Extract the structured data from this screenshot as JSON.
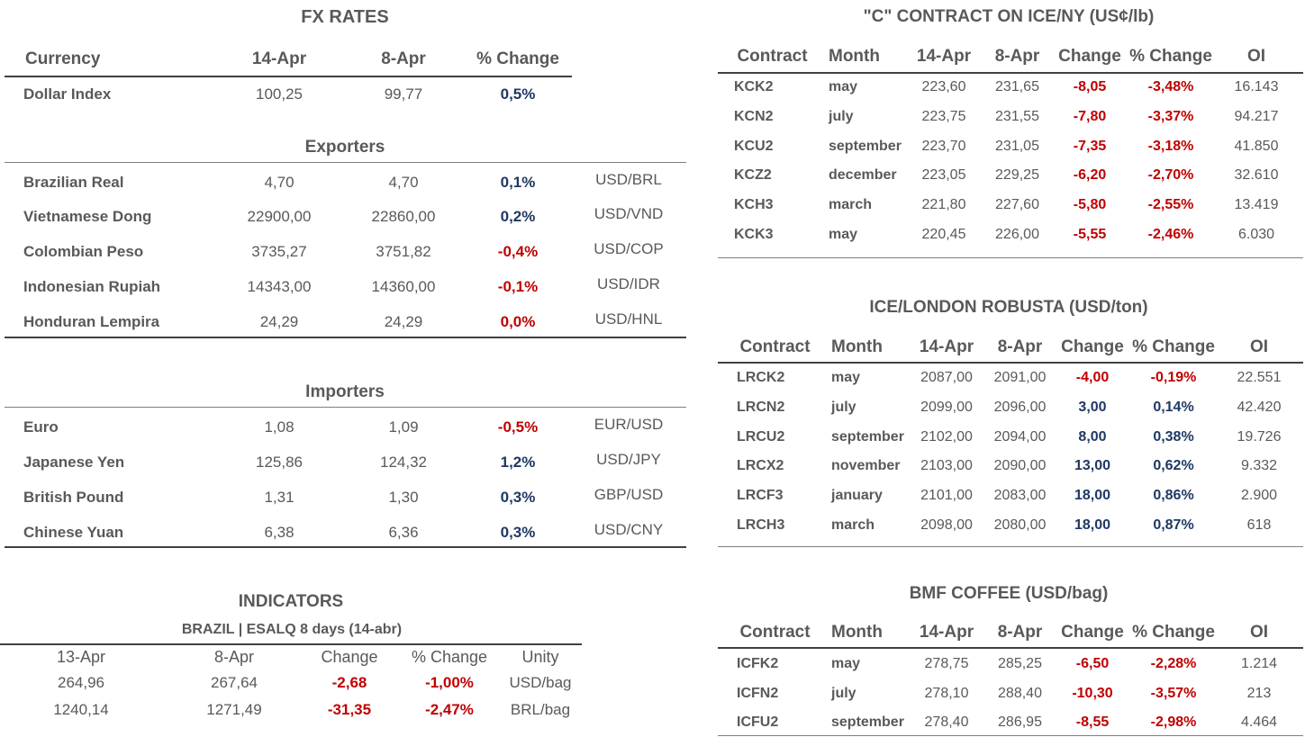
{
  "fx": {
    "title": "FX RATES",
    "headers": [
      "Currency",
      "14-Apr",
      "8-Apr",
      "% Change"
    ],
    "dollar_index": {
      "name": "Dollar Index",
      "v1": "100,25",
      "v2": "99,77",
      "chg": "0,5%"
    },
    "exporters_title": "Exporters",
    "exporters": [
      {
        "name": "Brazilian Real",
        "v1": "4,70",
        "v2": "4,70",
        "chg": "0,1%",
        "pair": "USD/BRL",
        "neg": false
      },
      {
        "name": "Vietnamese Dong",
        "v1": "22900,00",
        "v2": "22860,00",
        "chg": "0,2%",
        "pair": "USD/VND",
        "neg": false
      },
      {
        "name": "Colombian Peso",
        "v1": "3735,27",
        "v2": "3751,82",
        "chg": "-0,4%",
        "pair": "USD/COP",
        "neg": true
      },
      {
        "name": "Indonesian Rupiah",
        "v1": "14343,00",
        "v2": "14360,00",
        "chg": "-0,1%",
        "pair": "USD/IDR",
        "neg": true
      },
      {
        "name": "Honduran Lempira",
        "v1": "24,29",
        "v2": "24,29",
        "chg": "0,0%",
        "pair": "USD/HNL",
        "neg": true
      }
    ],
    "importers_title": "Importers",
    "importers": [
      {
        "name": "Euro",
        "v1": "1,08",
        "v2": "1,09",
        "chg": "-0,5%",
        "pair": "EUR/USD",
        "neg": true
      },
      {
        "name": "Japanese Yen",
        "v1": "125,86",
        "v2": "124,32",
        "chg": "1,2%",
        "pair": "USD/JPY",
        "neg": false
      },
      {
        "name": "British Pound",
        "v1": "1,31",
        "v2": "1,30",
        "chg": "0,3%",
        "pair": "GBP/USD",
        "neg": false
      },
      {
        "name": "Chinese Yuan",
        "v1": "6,38",
        "v2": "6,36",
        "chg": "0,3%",
        "pair": "USD/CNY",
        "neg": false
      }
    ]
  },
  "indicators": {
    "title": "INDICATORS",
    "subtitle": "BRAZIL | ESALQ 8 days (14-abr)",
    "headers": [
      "13-Apr",
      "8-Apr",
      "Change",
      "% Change",
      "Unity"
    ],
    "rows": [
      {
        "v1": "264,96",
        "v2": "267,64",
        "chg": "-2,68",
        "pct": "-1,00%",
        "unit": "USD/bag"
      },
      {
        "v1": "1240,14",
        "v2": "1271,49",
        "chg": "-31,35",
        "pct": "-2,47%",
        "unit": "BRL/bag"
      }
    ]
  },
  "contract_headers": [
    "Contract",
    "Month",
    "14-Apr",
    "8-Apr",
    "Change",
    "% Change",
    "OI"
  ],
  "ice_ny": {
    "title": "\"C\" CONTRACT ON ICE/NY (US¢/lb)",
    "rows": [
      {
        "c": "KCK2",
        "m": "may",
        "v1": "223,60",
        "v2": "231,65",
        "chg": "-8,05",
        "pct": "-3,48%",
        "oi": "16.143",
        "neg": true
      },
      {
        "c": "KCN2",
        "m": "july",
        "v1": "223,75",
        "v2": "231,55",
        "chg": "-7,80",
        "pct": "-3,37%",
        "oi": "94.217",
        "neg": true
      },
      {
        "c": "KCU2",
        "m": "september",
        "v1": "223,70",
        "v2": "231,05",
        "chg": "-7,35",
        "pct": "-3,18%",
        "oi": "41.850",
        "neg": true
      },
      {
        "c": "KCZ2",
        "m": "december",
        "v1": "223,05",
        "v2": "229,25",
        "chg": "-6,20",
        "pct": "-2,70%",
        "oi": "32.610",
        "neg": true
      },
      {
        "c": "KCH3",
        "m": "march",
        "v1": "221,80",
        "v2": "227,60",
        "chg": "-5,80",
        "pct": "-2,55%",
        "oi": "13.419",
        "neg": true
      },
      {
        "c": "KCK3",
        "m": "may",
        "v1": "220,45",
        "v2": "226,00",
        "chg": "-5,55",
        "pct": "-2,46%",
        "oi": "6.030",
        "neg": true
      }
    ]
  },
  "ice_london": {
    "title": "ICE/LONDON ROBUSTA (USD/ton)",
    "rows": [
      {
        "c": "LRCK2",
        "m": "may",
        "v1": "2087,00",
        "v2": "2091,00",
        "chg": "-4,00",
        "pct": "-0,19%",
        "oi": "22.551",
        "neg": true
      },
      {
        "c": "LRCN2",
        "m": "july",
        "v1": "2099,00",
        "v2": "2096,00",
        "chg": "3,00",
        "pct": "0,14%",
        "oi": "42.420",
        "neg": false
      },
      {
        "c": "LRCU2",
        "m": "september",
        "v1": "2102,00",
        "v2": "2094,00",
        "chg": "8,00",
        "pct": "0,38%",
        "oi": "19.726",
        "neg": false
      },
      {
        "c": "LRCX2",
        "m": "november",
        "v1": "2103,00",
        "v2": "2090,00",
        "chg": "13,00",
        "pct": "0,62%",
        "oi": "9.332",
        "neg": false
      },
      {
        "c": "LRCF3",
        "m": "january",
        "v1": "2101,00",
        "v2": "2083,00",
        "chg": "18,00",
        "pct": "0,86%",
        "oi": "2.900",
        "neg": false
      },
      {
        "c": "LRCH3",
        "m": "march",
        "v1": "2098,00",
        "v2": "2080,00",
        "chg": "18,00",
        "pct": "0,87%",
        "oi": "618",
        "neg": false
      }
    ]
  },
  "bmf": {
    "title": "BMF COFFEE (USD/bag)",
    "rows": [
      {
        "c": "ICFK2",
        "m": "may",
        "v1": "278,75",
        "v2": "285,25",
        "chg": "-6,50",
        "pct": "-2,28%",
        "oi": "1.214",
        "neg": true
      },
      {
        "c": "ICFN2",
        "m": "july",
        "v1": "278,10",
        "v2": "288,40",
        "chg": "-10,30",
        "pct": "-3,57%",
        "oi": "213",
        "neg": true
      },
      {
        "c": "ICFU2",
        "m": "september",
        "v1": "278,40",
        "v2": "286,95",
        "chg": "-8,55",
        "pct": "-2,98%",
        "oi": "4.464",
        "neg": true
      }
    ]
  }
}
